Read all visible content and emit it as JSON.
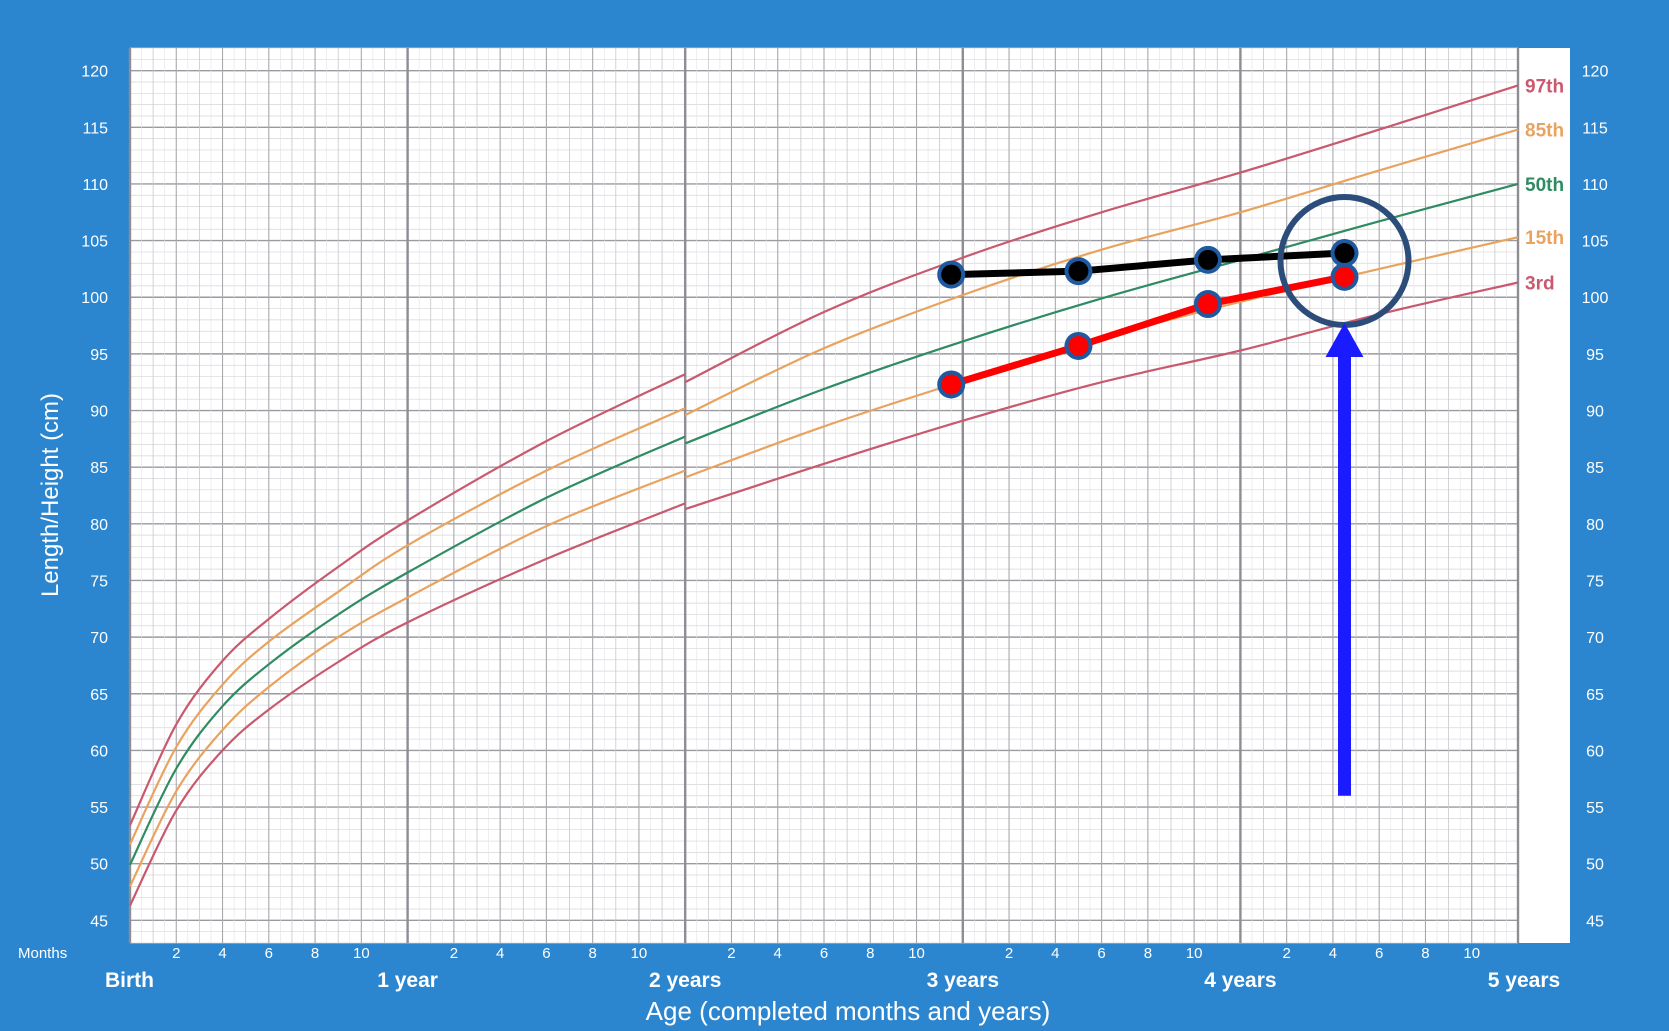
{
  "chart_data": {
    "type": "line",
    "xlabel": "Age (completed months and years)",
    "ylabel": "Length/Height (cm)",
    "months_label": "Months",
    "x_unit": "months",
    "xlim": [
      0,
      60
    ],
    "ylim": [
      43,
      122
    ],
    "y_ticks": [
      45,
      50,
      55,
      60,
      65,
      70,
      75,
      80,
      85,
      90,
      95,
      100,
      105,
      110,
      115,
      120
    ],
    "month_ticks": [
      2,
      4,
      6,
      8,
      10
    ],
    "year_labels": [
      {
        "month": 0,
        "label": "Birth"
      },
      {
        "month": 12,
        "label": "1 year"
      },
      {
        "month": 24,
        "label": "2 years"
      },
      {
        "month": 36,
        "label": "3 years"
      },
      {
        "month": 48,
        "label": "4 years"
      },
      {
        "month": 60,
        "label": "5 years"
      }
    ],
    "grid": true,
    "percentiles": [
      {
        "name": "97th",
        "color": "#c8596e",
        "x": [
          0,
          2,
          4,
          6,
          9,
          12,
          18,
          23.99,
          24,
          30,
          36,
          42,
          48,
          54,
          60
        ],
        "y": [
          53.4,
          62.3,
          67.9,
          71.6,
          76.2,
          80.3,
          87.3,
          93.2,
          92.5,
          98.7,
          103.5,
          107.5,
          111.0,
          114.8,
          118.7
        ]
      },
      {
        "name": "85th",
        "color": "#e8a35f",
        "x": [
          0,
          2,
          4,
          6,
          9,
          12,
          18,
          23.99,
          24,
          30,
          36,
          42,
          48,
          54,
          60
        ],
        "y": [
          51.7,
          60.3,
          65.8,
          69.6,
          74.0,
          78.1,
          84.7,
          90.2,
          89.6,
          95.5,
          100.2,
          104.2,
          107.5,
          111.2,
          114.8
        ]
      },
      {
        "name": "50th",
        "color": "#2e8b62",
        "x": [
          0,
          2,
          4,
          6,
          9,
          12,
          18,
          23.99,
          24,
          30,
          36,
          42,
          48,
          54,
          60
        ],
        "y": [
          49.9,
          58.4,
          63.9,
          67.6,
          72.0,
          75.7,
          82.3,
          87.7,
          87.1,
          91.9,
          96.1,
          99.9,
          103.3,
          106.7,
          110.0
        ]
      },
      {
        "name": "15th",
        "color": "#e8a35f",
        "x": [
          0,
          2,
          4,
          6,
          9,
          12,
          18,
          23.99,
          24,
          30,
          36,
          42,
          48,
          54,
          60
        ],
        "y": [
          48.0,
          56.4,
          61.8,
          65.6,
          70.0,
          73.5,
          79.8,
          84.7,
          84.1,
          88.6,
          92.6,
          96.4,
          99.6,
          102.5,
          105.3
        ]
      },
      {
        "name": "3rd",
        "color": "#c8596e",
        "x": [
          0,
          2,
          4,
          6,
          9,
          12,
          18,
          23.99,
          24,
          30,
          36,
          42,
          48,
          54,
          60
        ],
        "y": [
          46.3,
          54.7,
          60.0,
          63.6,
          67.8,
          71.3,
          76.9,
          81.8,
          81.3,
          85.3,
          89.1,
          92.5,
          95.3,
          98.5,
          101.3
        ]
      }
    ],
    "measurements": [
      {
        "color": "#000000",
        "x": [
          35.5,
          41.0,
          46.6,
          52.5
        ],
        "y": [
          102.0,
          102.3,
          103.3,
          103.9
        ]
      },
      {
        "color": "#ff0000",
        "x": [
          35.5,
          41.0,
          46.6,
          52.5
        ],
        "y": [
          92.3,
          95.7,
          99.4,
          101.8
        ]
      }
    ],
    "highlight": {
      "x": 52.5,
      "y": 103.2,
      "circle_color": "#2c4d7a",
      "arrow_color": "#1b1bff",
      "arrow_from_y": 56
    }
  }
}
